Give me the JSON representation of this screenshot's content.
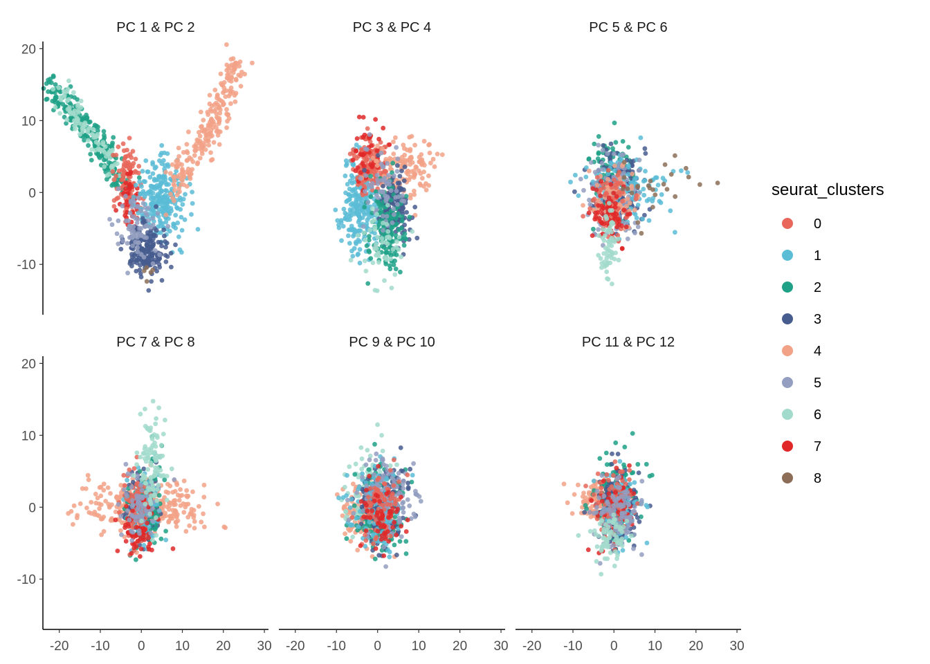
{
  "chart_data": {
    "type": "scatter",
    "layout": "faceted 2x3 grid, shared axes",
    "xlim": [
      -24,
      31
    ],
    "ylim": [
      -17,
      21
    ],
    "x_ticks": [
      -20,
      -10,
      0,
      10,
      20,
      30
    ],
    "y_ticks": [
      20,
      10,
      0,
      -10
    ],
    "grid": false,
    "legend": {
      "title": "seurat_clusters",
      "position": "right",
      "entries": [
        {
          "label": "0",
          "color": "#E8675A"
        },
        {
          "label": "1",
          "color": "#5BBCD6"
        },
        {
          "label": "2",
          "color": "#1FA187"
        },
        {
          "label": "3",
          "color": "#475C8E"
        },
        {
          "label": "4",
          "color": "#F2A287"
        },
        {
          "label": "5",
          "color": "#939EC0"
        },
        {
          "label": "6",
          "color": "#A2DBCB"
        },
        {
          "label": "7",
          "color": "#E02828"
        },
        {
          "label": "8",
          "color": "#8C6E58"
        }
      ]
    },
    "facets": [
      {
        "title": "PC 1 & PC 2",
        "clusters": [
          {
            "cluster": "2",
            "x_mean": -11,
            "y_mean": 6,
            "x_sd": 4,
            "y_sd": 2.5,
            "n": 240,
            "path": [
              [
                -22,
                15
              ],
              [
                -12,
                8
              ],
              [
                -5,
                1
              ]
            ]
          },
          {
            "cluster": "6",
            "x_mean": -9,
            "y_mean": 5,
            "x_sd": 3,
            "y_sd": 2.5,
            "n": 90,
            "path": [
              [
                -20,
                14
              ],
              [
                -6,
                3
              ]
            ]
          },
          {
            "cluster": "0",
            "x_mean": -3.5,
            "y_mean": 1,
            "x_sd": 1.5,
            "y_sd": 2.5,
            "n": 110
          },
          {
            "cluster": "7",
            "x_mean": -3,
            "y_mean": -1,
            "x_sd": 1.2,
            "y_sd": 2,
            "n": 40
          },
          {
            "cluster": "1",
            "x_mean": 5,
            "y_mean": -1,
            "x_sd": 3,
            "y_sd": 3,
            "n": 240
          },
          {
            "cluster": "4",
            "x_mean": 14,
            "y_mean": 7,
            "x_sd": 4,
            "y_sd": 4,
            "n": 230,
            "path": [
              [
                8,
                1
              ],
              [
                16,
                8
              ],
              [
                24,
                18
              ]
            ]
          },
          {
            "cluster": "3",
            "x_mean": 1.5,
            "y_mean": -8,
            "x_sd": 2.5,
            "y_sd": 2,
            "n": 180
          },
          {
            "cluster": "5",
            "x_mean": -1,
            "y_mean": -5,
            "x_sd": 3,
            "y_sd": 2.5,
            "n": 70
          },
          {
            "cluster": "8",
            "x_mean": 2,
            "y_mean": -11,
            "x_sd": 1,
            "y_sd": 1,
            "n": 5
          }
        ]
      },
      {
        "title": "PC 3 & PC 4",
        "clusters": [
          {
            "cluster": "1",
            "x_mean": -4,
            "y_mean": -2,
            "x_sd": 2.5,
            "y_sd": 3,
            "n": 220
          },
          {
            "cluster": "0",
            "x_mean": -2,
            "y_mean": 4,
            "x_sd": 2,
            "y_sd": 2,
            "n": 150
          },
          {
            "cluster": "7",
            "x_mean": -2,
            "y_mean": 5,
            "x_sd": 2,
            "y_sd": 2.5,
            "n": 40
          },
          {
            "cluster": "4",
            "x_mean": 7,
            "y_mean": 3.5,
            "x_sd": 4,
            "y_sd": 2,
            "n": 130
          },
          {
            "cluster": "3",
            "x_mean": 4,
            "y_mean": -2,
            "x_sd": 2,
            "y_sd": 2.5,
            "n": 170
          },
          {
            "cluster": "2",
            "x_mean": 2,
            "y_mean": -5,
            "x_sd": 2.5,
            "y_sd": 3,
            "n": 150
          },
          {
            "cluster": "5",
            "x_mean": 1,
            "y_mean": 0,
            "x_sd": 2.5,
            "y_sd": 3,
            "n": 60
          },
          {
            "cluster": "6",
            "x_mean": 1,
            "y_mean": -7,
            "x_sd": 3,
            "y_sd": 3,
            "n": 50
          }
        ]
      },
      {
        "title": "PC 5 & PC 6",
        "clusters": [
          {
            "cluster": "2",
            "x_mean": 0,
            "y_mean": 2.5,
            "x_sd": 2.5,
            "y_sd": 2.5,
            "n": 130
          },
          {
            "cluster": "3",
            "x_mean": 1,
            "y_mean": 0,
            "x_sd": 3,
            "y_sd": 2.5,
            "n": 150
          },
          {
            "cluster": "1",
            "x_mean": 3,
            "y_mean": 0.5,
            "x_sd": 5,
            "y_sd": 2.5,
            "n": 130
          },
          {
            "cluster": "5",
            "x_mean": 0,
            "y_mean": 0,
            "x_sd": 3,
            "y_sd": 3,
            "n": 110
          },
          {
            "cluster": "4",
            "x_mean": 0,
            "y_mean": -1,
            "x_sd": 3,
            "y_sd": 2,
            "n": 80
          },
          {
            "cluster": "0",
            "x_mean": -1,
            "y_mean": -1.5,
            "x_sd": 2.5,
            "y_sd": 2.5,
            "n": 70
          },
          {
            "cluster": "7",
            "x_mean": -1,
            "y_mean": -3,
            "x_sd": 2.5,
            "y_sd": 2,
            "n": 70
          },
          {
            "cluster": "6",
            "x_mean": -1,
            "y_mean": -8,
            "x_sd": 1,
            "y_sd": 2.5,
            "n": 60
          },
          {
            "cluster": "8",
            "x_mean": 10,
            "y_mean": 0.5,
            "x_sd": 6,
            "y_sd": 2,
            "n": 25
          }
        ]
      },
      {
        "title": "PC 7 & PC 8",
        "clusters": [
          {
            "cluster": "4",
            "x_mean": 0,
            "y_mean": 0,
            "x_sd": 7,
            "y_sd": 1.8,
            "n": 340
          },
          {
            "cluster": "3",
            "x_mean": 0,
            "y_mean": 0,
            "x_sd": 2,
            "y_sd": 2.5,
            "n": 130
          },
          {
            "cluster": "2",
            "x_mean": 1,
            "y_mean": 0,
            "x_sd": 2,
            "y_sd": 3,
            "n": 110
          },
          {
            "cluster": "1",
            "x_mean": 1,
            "y_mean": 0,
            "x_sd": 2,
            "y_sd": 2.5,
            "n": 90
          },
          {
            "cluster": "0",
            "x_mean": -1,
            "y_mean": 0,
            "x_sd": 1.5,
            "y_sd": 3,
            "n": 90
          },
          {
            "cluster": "7",
            "x_mean": -1,
            "y_mean": -3,
            "x_sd": 2,
            "y_sd": 2,
            "n": 60
          },
          {
            "cluster": "5",
            "x_mean": 0,
            "y_mean": 0,
            "x_sd": 2.5,
            "y_sd": 2.5,
            "n": 70
          },
          {
            "cluster": "6",
            "x_mean": 2.5,
            "y_mean": 6,
            "x_sd": 1.5,
            "y_sd": 4,
            "n": 100
          }
        ]
      },
      {
        "title": "PC 9 & PC 10",
        "clusters": [
          {
            "cluster": "4",
            "x_mean": -3,
            "y_mean": -1.5,
            "x_sd": 3,
            "y_sd": 2,
            "n": 130
          },
          {
            "cluster": "6",
            "x_mean": -2,
            "y_mean": 2,
            "x_sd": 3,
            "y_sd": 3,
            "n": 100
          },
          {
            "cluster": "2",
            "x_mean": 0,
            "y_mean": 0,
            "x_sd": 3,
            "y_sd": 3,
            "n": 150
          },
          {
            "cluster": "3",
            "x_mean": 1,
            "y_mean": 0,
            "x_sd": 3,
            "y_sd": 3,
            "n": 150
          },
          {
            "cluster": "1",
            "x_mean": 0,
            "y_mean": 0,
            "x_sd": 3,
            "y_sd": 3,
            "n": 120
          },
          {
            "cluster": "5",
            "x_mean": 2,
            "y_mean": 1,
            "x_sd": 4,
            "y_sd": 3,
            "n": 110
          },
          {
            "cluster": "0",
            "x_mean": 1,
            "y_mean": 0,
            "x_sd": 2.5,
            "y_sd": 2.5,
            "n": 80
          },
          {
            "cluster": "7",
            "x_mean": 1,
            "y_mean": -1,
            "x_sd": 2.5,
            "y_sd": 2.5,
            "n": 60
          }
        ]
      },
      {
        "title": "PC 11 & PC 12",
        "clusters": [
          {
            "cluster": "4",
            "x_mean": -4,
            "y_mean": 1,
            "x_sd": 3,
            "y_sd": 1.3,
            "n": 120
          },
          {
            "cluster": "2",
            "x_mean": 1,
            "y_mean": 1,
            "x_sd": 2.5,
            "y_sd": 3,
            "n": 180
          },
          {
            "cluster": "3",
            "x_mean": 1,
            "y_mean": 0,
            "x_sd": 2.5,
            "y_sd": 2.5,
            "n": 140
          },
          {
            "cluster": "1",
            "x_mean": 1,
            "y_mean": 0,
            "x_sd": 2.5,
            "y_sd": 2.5,
            "n": 100
          },
          {
            "cluster": "0",
            "x_mean": 0,
            "y_mean": 1,
            "x_sd": 2.5,
            "y_sd": 2.5,
            "n": 80
          },
          {
            "cluster": "7",
            "x_mean": 0,
            "y_mean": 0,
            "x_sd": 2.5,
            "y_sd": 2.5,
            "n": 50
          },
          {
            "cluster": "5",
            "x_mean": 1,
            "y_mean": -1,
            "x_sd": 3,
            "y_sd": 2.5,
            "n": 90
          },
          {
            "cluster": "6",
            "x_mean": -1,
            "y_mean": -4,
            "x_sd": 2,
            "y_sd": 2,
            "n": 70
          }
        ]
      }
    ]
  }
}
